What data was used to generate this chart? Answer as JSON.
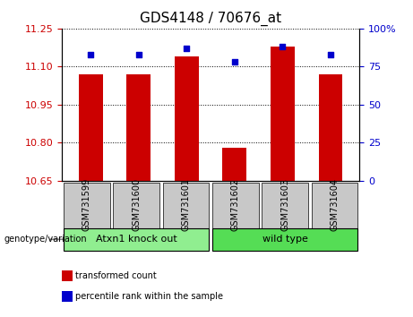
{
  "title": "GDS4148 / 70676_at",
  "samples": [
    "GSM731599",
    "GSM731600",
    "GSM731601",
    "GSM731602",
    "GSM731603",
    "GSM731604"
  ],
  "transformed_counts": [
    11.07,
    11.07,
    11.14,
    10.78,
    11.18,
    11.07
  ],
  "percentile_ranks": [
    83,
    83,
    87,
    78,
    88,
    83
  ],
  "ylim_left": [
    10.65,
    11.25
  ],
  "ylim_right": [
    0,
    100
  ],
  "yticks_left": [
    10.65,
    10.8,
    10.95,
    11.1,
    11.25
  ],
  "yticks_right": [
    0,
    25,
    50,
    75,
    100
  ],
  "bar_color": "#CC0000",
  "dot_color": "#0000CC",
  "groups": [
    {
      "label": "Atxn1 knock out",
      "indices": [
        0,
        1,
        2
      ],
      "color": "#90EE90"
    },
    {
      "label": "wild type",
      "indices": [
        3,
        4,
        5
      ],
      "color": "#55DD55"
    }
  ],
  "group_label_prefix": "genotype/variation",
  "legend_items": [
    {
      "label": "transformed count",
      "color": "#CC0000"
    },
    {
      "label": "percentile rank within the sample",
      "color": "#0000CC"
    }
  ],
  "bar_width": 0.5,
  "background_color": "#FFFFFF",
  "plot_bg_color": "#FFFFFF",
  "tick_label_color_left": "#CC0000",
  "tick_label_color_right": "#0000CC",
  "grid_color": "#000000",
  "title_fontsize": 11,
  "tick_fontsize": 8,
  "label_fontsize": 8,
  "sample_label_fontsize": 7,
  "sample_box_color": "#C8C8C8"
}
